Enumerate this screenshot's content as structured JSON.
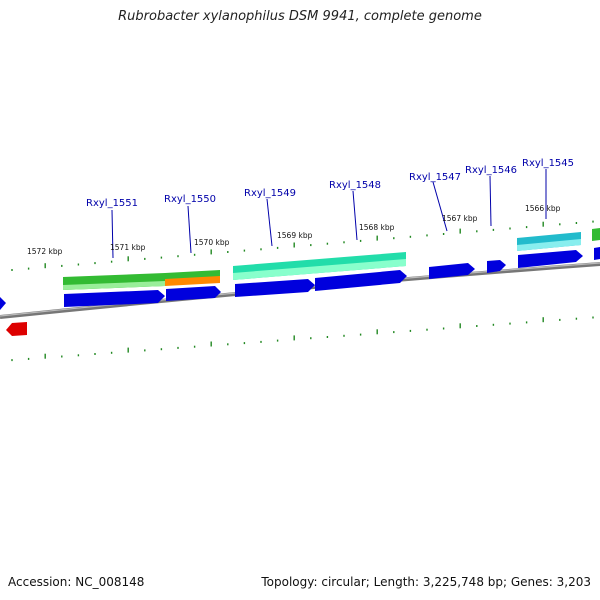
{
  "title": "Rubrobacter xylanophilus DSM 9941, complete genome",
  "footer": {
    "accession": "Accession: NC_008148",
    "summary": "Topology: circular; Length: 3,225,748 bp; Genes: 3,203"
  },
  "colors": {
    "forward_gene": "#0000dd",
    "reverse_gene": "#dd0000",
    "backbone": "#888888",
    "tick": "#228822",
    "gene_label": "#0000aa",
    "feature_green": "#33bb33",
    "feature_teal": "#22ddaa",
    "feature_cyan": "#22bbcc",
    "feature_orange": "#ff8800"
  },
  "scale_labels": [
    "1572 kbp",
    "1571 kbp",
    "1570 kbp",
    "1569 kbp",
    "1568 kbp",
    "1567 kbp",
    "1566 kbp"
  ],
  "gene_labels": [
    "Rxyl_1551",
    "Rxyl_1550",
    "Rxyl_1549",
    "Rxyl_1548",
    "Rxyl_1547",
    "Rxyl_1546",
    "Rxyl_1545"
  ]
}
